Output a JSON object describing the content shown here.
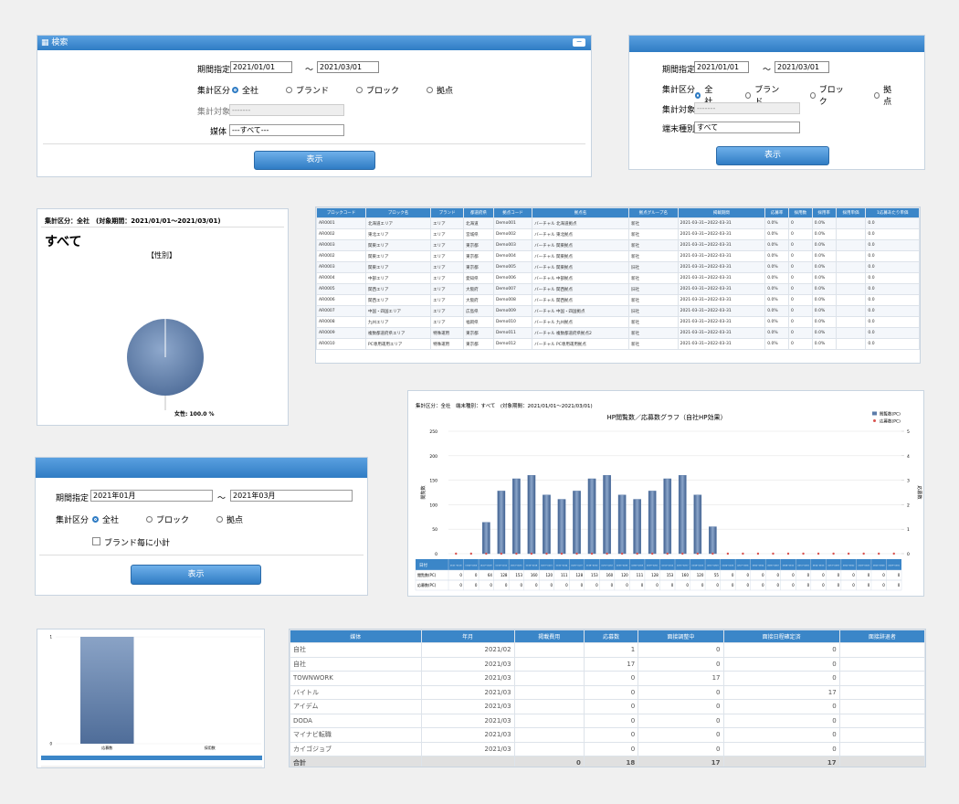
{
  "search_panel": {
    "title": "検索",
    "period_label": "期間指定",
    "from": "2021/01/01",
    "separator": "～",
    "to": "2021/03/01",
    "aggregate_label": "集計区分",
    "options": [
      "全社",
      "ブランド",
      "ブロック",
      "拠点"
    ],
    "target_label": "集計対象",
    "target_value": "-------",
    "media_label": "媒体",
    "media_value": "---すべて---",
    "button": "表示"
  },
  "search_panel2": {
    "period_label": "期間指定",
    "from": "2021/01/01",
    "separator": "～",
    "to": "2021/03/01",
    "aggregate_label": "集計区分",
    "options": [
      "全社",
      "ブランド",
      "ブロック",
      "拠点"
    ],
    "target_label": "集計対象",
    "target_value": "-------",
    "device_label": "端末種別",
    "device_value": "すべて",
    "button": "表示"
  },
  "pie_panel": {
    "header": "集計区分：全社　(対象期間：2021/01/01～2021/03/01)",
    "title": "すべて",
    "chart_title": "【性別】",
    "values": [
      100
    ],
    "labels": [
      "女性: 100.0 %"
    ]
  },
  "store_table": {
    "columns": [
      "ブロックコード",
      "ブロック名",
      "ブランド",
      "都道府県",
      "拠点コード",
      "拠点名",
      "拠点グループ名",
      "掲載期間",
      "応募率",
      "採用数",
      "採用率",
      "採用単価",
      "1応募あたり単価"
    ],
    "rows": [
      [
        "AR0001",
        "北海道エリア",
        "エリア",
        "北海道",
        "Demo001",
        "バーチャル 北海道拠点",
        "新社",
        "2021-03-31~2022-03-31",
        "0.0%",
        "0",
        "0.0%",
        null,
        "0.0"
      ],
      [
        "AR0002",
        "東北エリア",
        "エリア",
        "宮城県",
        "Demo002",
        "バーチャル 東北拠点",
        "新社",
        "2021-03-31~2022-03-31",
        "0.0%",
        "0",
        "0.0%",
        null,
        "0.0"
      ],
      [
        "AR0003",
        "関東エリア",
        "エリア",
        "東京都",
        "Demo003",
        "バーチャル 関東拠点",
        "新社",
        "2021-03-31~2022-03-31",
        "0.0%",
        "0",
        "0.0%",
        null,
        "0.0"
      ],
      [
        "AR0002",
        "関東エリア",
        "エリア",
        "東京都",
        "Demo004",
        "バーチャル 関東拠点",
        "新社",
        "2021-03-31~2022-03-31",
        "0.0%",
        "0",
        "0.0%",
        null,
        "0.0"
      ],
      [
        "AR0003",
        "関東エリア",
        "エリア",
        "東京都",
        "Demo005",
        "バーチャル 関東拠点",
        "旧社",
        "2021-03-31~2022-03-31",
        "0.0%",
        "0",
        "0.0%",
        null,
        "0.0"
      ],
      [
        "AR0004",
        "中部エリア",
        "エリア",
        "愛知県",
        "Demo006",
        "バーチャル 中部拠点",
        "新社",
        "2021-03-31~2022-03-31",
        "0.0%",
        "0",
        "0.0%",
        null,
        "0.0"
      ],
      [
        "AR0005",
        "関西エリア",
        "エリア",
        "大阪府",
        "Demo007",
        "バーチャル 関西拠点",
        "旧社",
        "2021-03-31~2022-03-31",
        "0.0%",
        "0",
        "0.0%",
        null,
        "0.0"
      ],
      [
        "AR0006",
        "関西エリア",
        "エリア",
        "大阪府",
        "Demo008",
        "バーチャル 関西拠点",
        "新社",
        "2021-03-31~2022-03-31",
        "0.0%",
        "0",
        "0.0%",
        null,
        "0.0"
      ],
      [
        "AR0007",
        "中国・四国エリア",
        "エリア",
        "広島県",
        "Demo009",
        "バーチャル 中国・四国拠点",
        "旧社",
        "2021-03-31~2022-03-31",
        "0.0%",
        "0",
        "0.0%",
        null,
        "0.0"
      ],
      [
        "AR0008",
        "九州エリア",
        "エリア",
        "福岡県",
        "Demo010",
        "バーチャル 九州拠点",
        "新社",
        "2021-03-31~2022-03-31",
        "0.0%",
        "0",
        "0.0%",
        null,
        "0.0"
      ],
      [
        "AR0009",
        "複数都道府県エリア",
        "特殊運用",
        "東京都",
        "Demo011",
        "バーチャル 複数都道府県拠点2",
        "新社",
        "2021-03-31~2022-03-31",
        "0.0%",
        "0",
        "0.0%",
        null,
        "0.0"
      ],
      [
        "AR0010",
        "PC専用運用エリア",
        "特殊運用",
        "東京都",
        "Demo012",
        "バーチャル PC専用運用拠点",
        "新社",
        "2021-03-31~2022-03-31",
        "0.0%",
        "0",
        "0.0%",
        null,
        "0.0"
      ]
    ]
  },
  "month_panel": {
    "period_label": "期間指定",
    "from": "2021年01月",
    "separator": "～",
    "to": "2021年03月",
    "aggregate_label": "集計区分",
    "options": [
      "全社",
      "ブロック",
      "拠点"
    ],
    "checkbox": "ブランド毎に小計",
    "button": "表示"
  },
  "bar_chart": {
    "type": "bar",
    "header": "集計区分：全社　端末種別：すべて　(対象期間：2021/01/01～2021/03/01)",
    "title": "HP閲覧数／応募数グラフ（自社HP効果）",
    "y_label": "閲覧数",
    "y2_label": "応募数",
    "table_header": "日付",
    "categories": [
      "01/01~01/03",
      "01/04~01/06",
      "01/07~01/09",
      "01/10~01/12",
      "01/13~01/15",
      "01/16~01/18",
      "01/19~01/21",
      "01/22~01/24",
      "01/25~01/27",
      "01/28~01/30",
      "01/31~02/02",
      "02/03~02/05",
      "02/06~02/08",
      "02/09~02/11",
      "02/12~02/14",
      "02/15~02/17",
      "02/18~02/20",
      "02/21~02/23",
      "02/24~02/26",
      "02/27~03/01",
      "03/02~03/04",
      "03/05~03/07",
      "03/08~03/10",
      "03/11~03/13",
      "03/14~03/16",
      "03/17~03/19",
      "03/20~03/22",
      "03/23~03/25",
      "03/26~03/28",
      "03/29~03/31"
    ],
    "series": [
      {
        "name": "閲覧数(PC)",
        "color": "#5b7caa",
        "values": [
          0,
          0,
          64,
          128,
          153,
          160,
          120,
          111,
          128,
          153,
          160,
          120,
          111,
          128,
          153,
          160,
          120,
          55,
          0,
          0,
          0,
          0,
          0,
          0,
          0,
          0,
          0,
          0,
          0,
          0
        ]
      },
      {
        "name": "応募数(PC)",
        "color": "#d9534f",
        "axis": "y2",
        "values": [
          0,
          0,
          0,
          0,
          0,
          0,
          0,
          0,
          0,
          0,
          0,
          0,
          0,
          0,
          0,
          0,
          0,
          0,
          0,
          0,
          0,
          0,
          0,
          0,
          0,
          0,
          0,
          0,
          0,
          0
        ]
      }
    ],
    "ylim": [
      0,
      250
    ],
    "yticks": [
      0,
      50,
      100,
      150,
      200,
      250
    ],
    "y2lim": [
      0,
      5
    ],
    "y2ticks": [
      0,
      1,
      2,
      3,
      4,
      5
    ]
  },
  "small_chart": {
    "type": "bar",
    "categories": [
      "応募数",
      "採用数"
    ],
    "values": [
      1,
      0
    ],
    "ylim": [
      0,
      1
    ],
    "yticks": [
      0,
      1
    ]
  },
  "media_table": {
    "columns": [
      "媒体",
      "年月",
      "掲載費用",
      "応募数",
      "面接調整中",
      "面接日程確定済",
      "面接辞退者"
    ],
    "rows": [
      [
        "自社",
        "2021/02",
        null,
        "1",
        "0",
        "0",
        null
      ],
      [
        "自社",
        "2021/03",
        null,
        "17",
        "0",
        "0",
        null
      ],
      [
        "TOWNWORK",
        "2021/03",
        null,
        "0",
        "17",
        "0",
        null
      ],
      [
        "バイトル",
        "2021/03",
        null,
        "0",
        "0",
        "17",
        null
      ],
      [
        "アイデム",
        "2021/03",
        null,
        "0",
        "0",
        "0",
        null
      ],
      [
        "DODA",
        "2021/03",
        null,
        "0",
        "0",
        "0",
        null
      ],
      [
        "マイナビ転職",
        "2021/03",
        null,
        "0",
        "0",
        "0",
        null
      ],
      [
        "カイゴジョブ",
        "2021/03",
        null,
        "0",
        "0",
        "0",
        null
      ]
    ],
    "total": [
      "合計",
      null,
      "0",
      "18",
      "17",
      "17",
      null
    ]
  }
}
